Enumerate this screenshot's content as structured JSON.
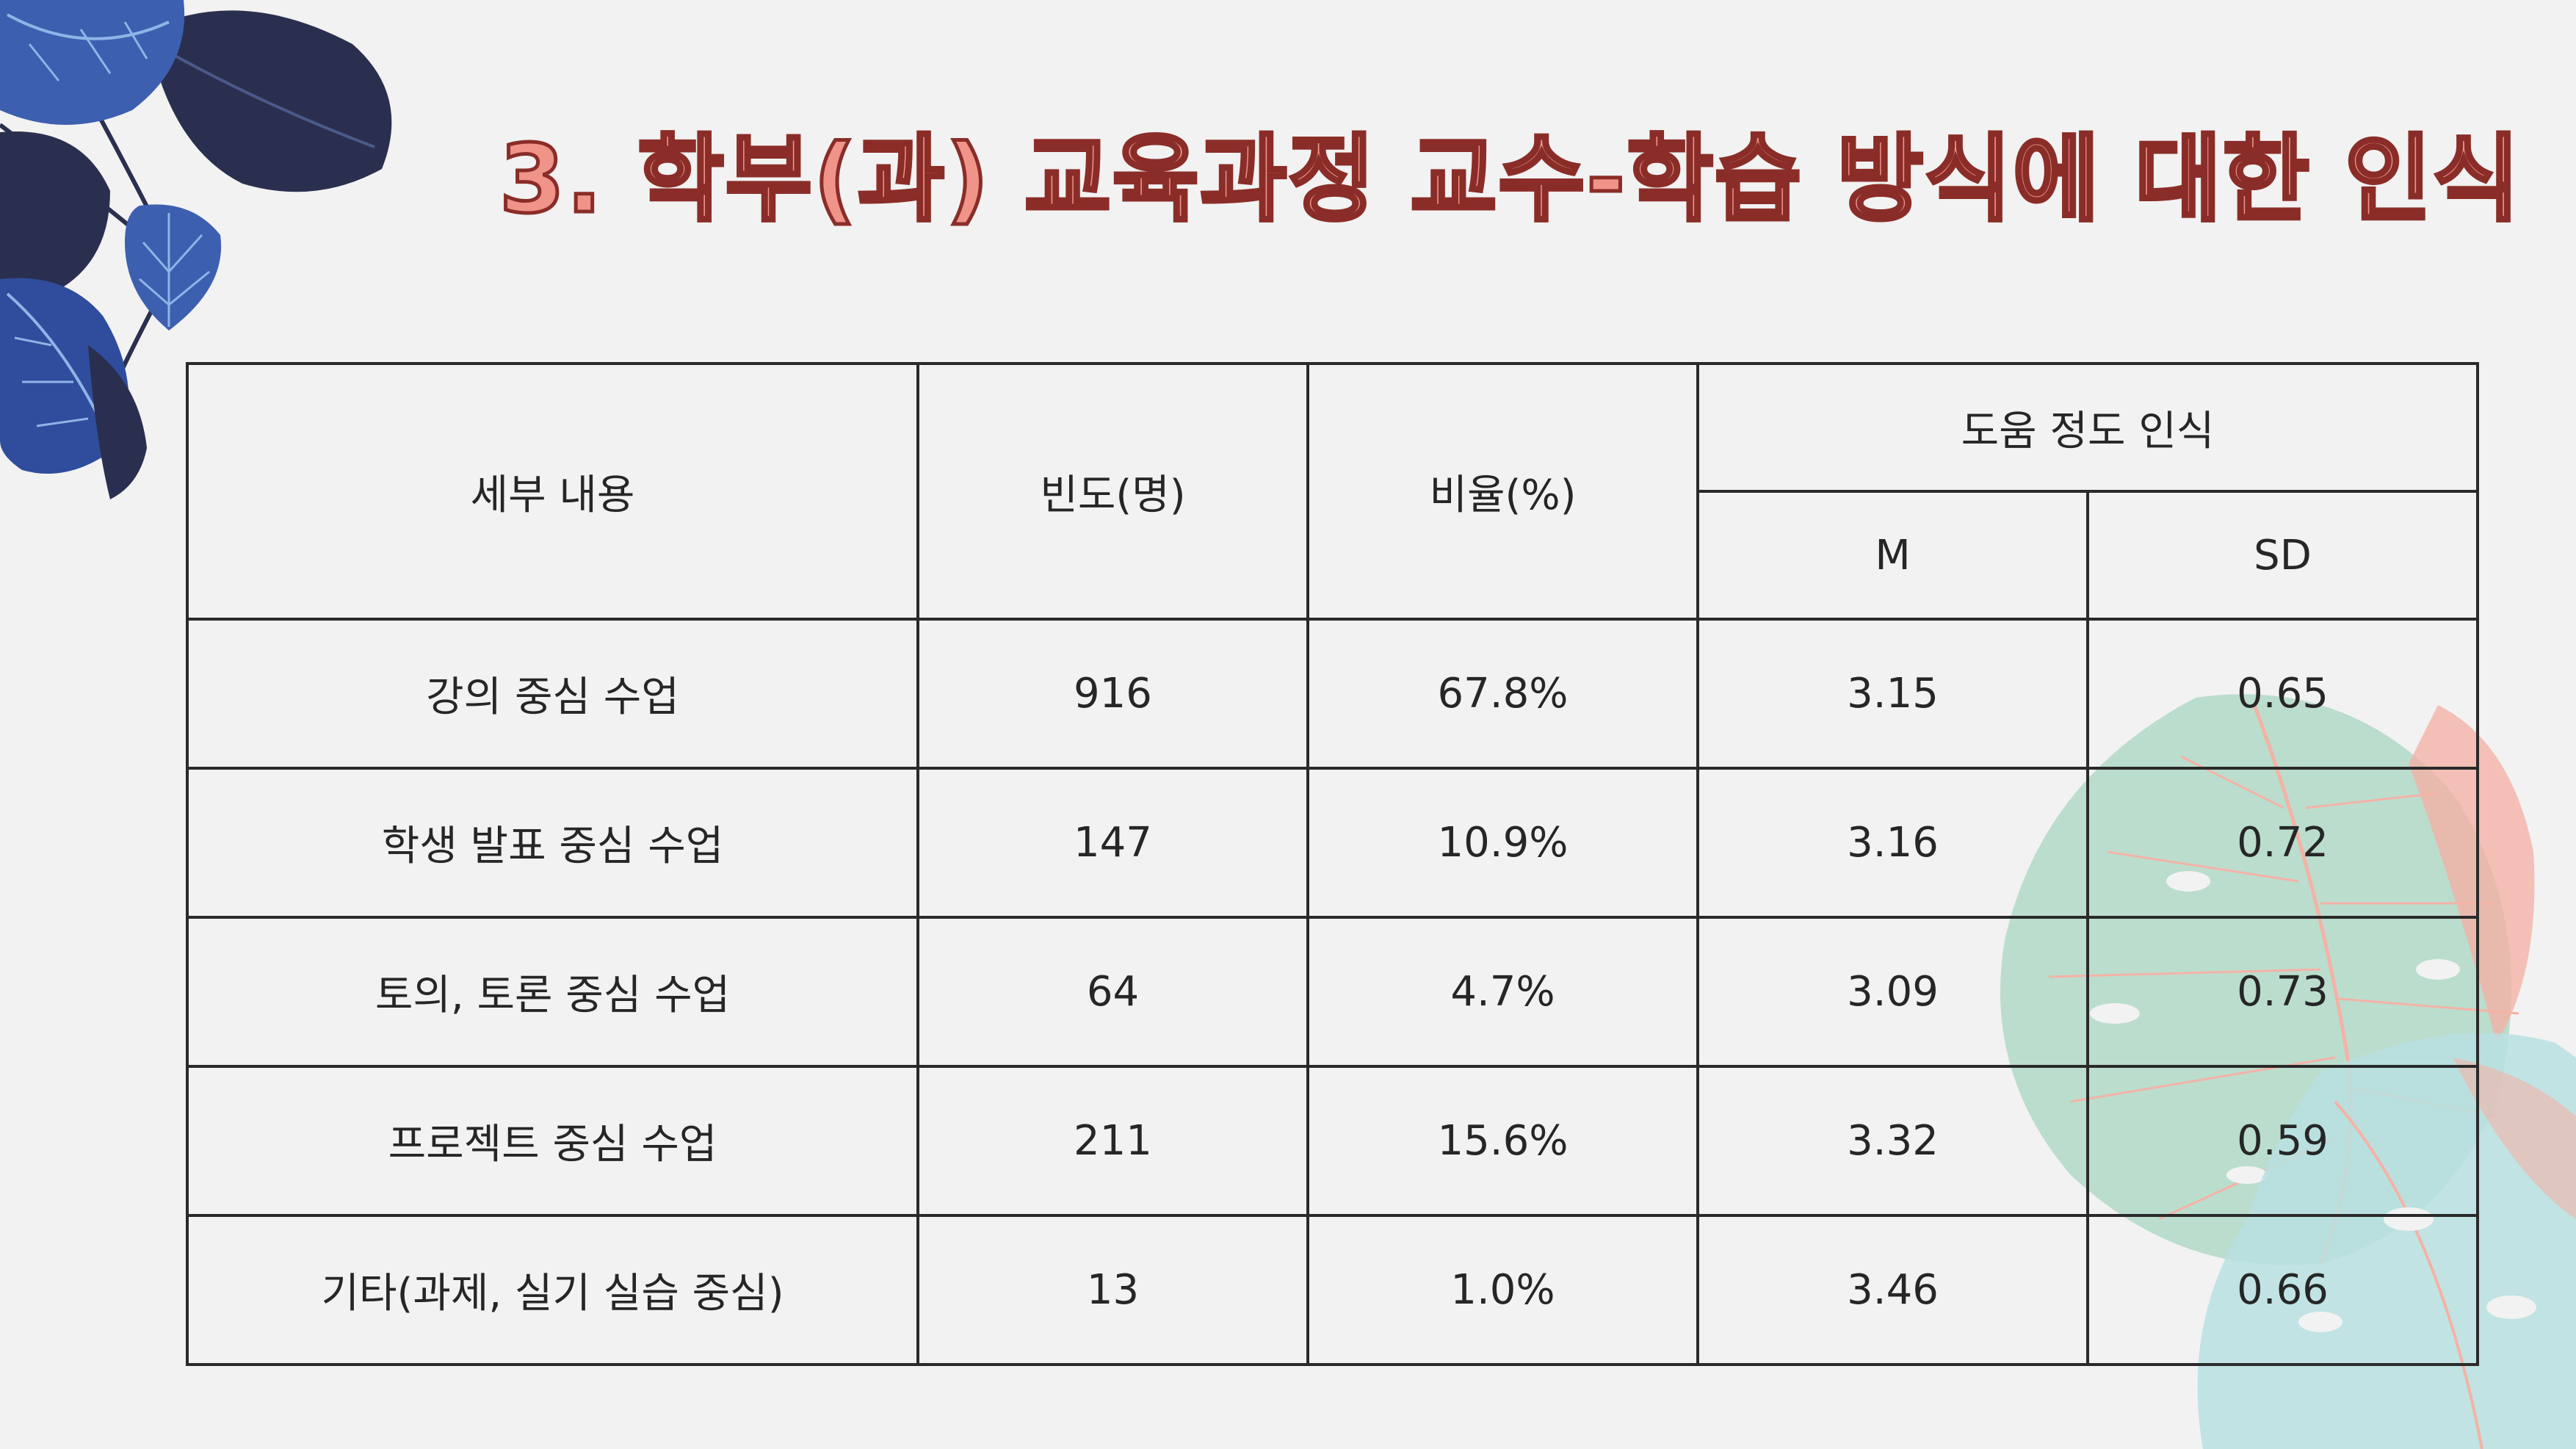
{
  "slide": {
    "title": "3. 학부(과) 교육과정 교수-학습 방식에 대한 인식"
  },
  "table": {
    "headers": {
      "content": "세부 내용",
      "frequency": "빈도(명)",
      "ratio": "비율(%)",
      "help_group": "도움 정도 인식",
      "mean": "M",
      "sd": "SD"
    },
    "rows": [
      {
        "content": "강의 중심 수업",
        "frequency": "916",
        "ratio": "67.8%",
        "mean": "3.15",
        "sd": "0.65"
      },
      {
        "content": "학생 발표 중심 수업",
        "frequency": "147",
        "ratio": "10.9%",
        "mean": "3.16",
        "sd": "0.72"
      },
      {
        "content": "토의, 토론 중심 수업",
        "frequency": "64",
        "ratio": "4.7%",
        "mean": "3.09",
        "sd": "0.73"
      },
      {
        "content": "프로젝트 중심 수업",
        "frequency": "211",
        "ratio": "15.6%",
        "mean": "3.32",
        "sd": "0.59"
      },
      {
        "content": "기타(과제, 실기 실습 중심)",
        "frequency": "13",
        "ratio": "1.0%",
        "mean": "3.46",
        "sd": "0.66"
      }
    ]
  },
  "decor": {
    "top_left": "monstera-leaves-navy-blue",
    "bottom_right": "monstera-leaves-pastel",
    "colors": {
      "title_fill": "#f0948a",
      "title_stroke": "#8a2d28",
      "navy": "#2b2f4f",
      "blue": "#3d5fb0",
      "mint": "#a8d5c0",
      "peach": "#f4b2a6"
    }
  }
}
